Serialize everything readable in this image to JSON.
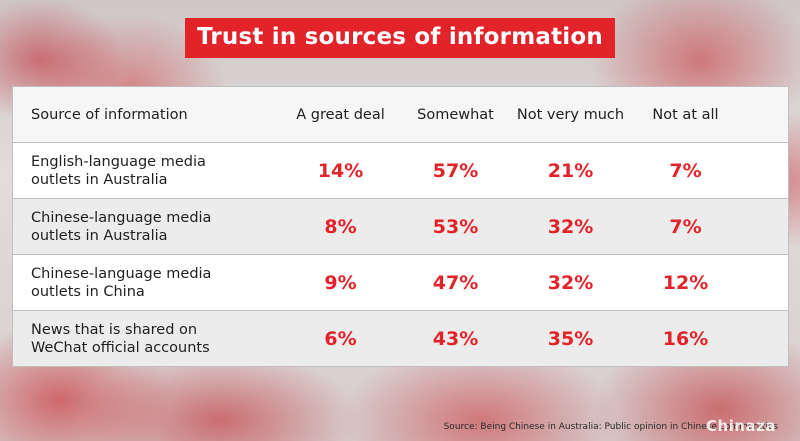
{
  "title": "Trust in sources of information",
  "header": {
    "source": "Source of information",
    "col1": "A great deal",
    "col2": "Somewhat",
    "col3": "Not very much",
    "col4": "Not at all"
  },
  "rows": [
    {
      "line1": "English-language media",
      "line2": "outlets in Australia",
      "v1": "14%",
      "v2": "57%",
      "v3": "21%",
      "v4": "7%"
    },
    {
      "line1": "Chinese-language media",
      "line2": "outlets in Australia",
      "v1": "8%",
      "v2": "53%",
      "v3": "32%",
      "v4": "7%"
    },
    {
      "line1": "Chinese-language media",
      "line2": "outlets in China",
      "v1": "9%",
      "v2": "47%",
      "v3": "32%",
      "v4": "12%"
    },
    {
      "line1": "News that is shared on",
      "line2": "WeChat official accounts",
      "v1": "6%",
      "v2": "43%",
      "v3": "35%",
      "v4": "16%"
    }
  ],
  "source_note": "Source: Being Chinese in Australia: Public opinion in Chinese communities",
  "watermark": "Chinaza",
  "colors": {
    "accent": "#e3232a"
  }
}
